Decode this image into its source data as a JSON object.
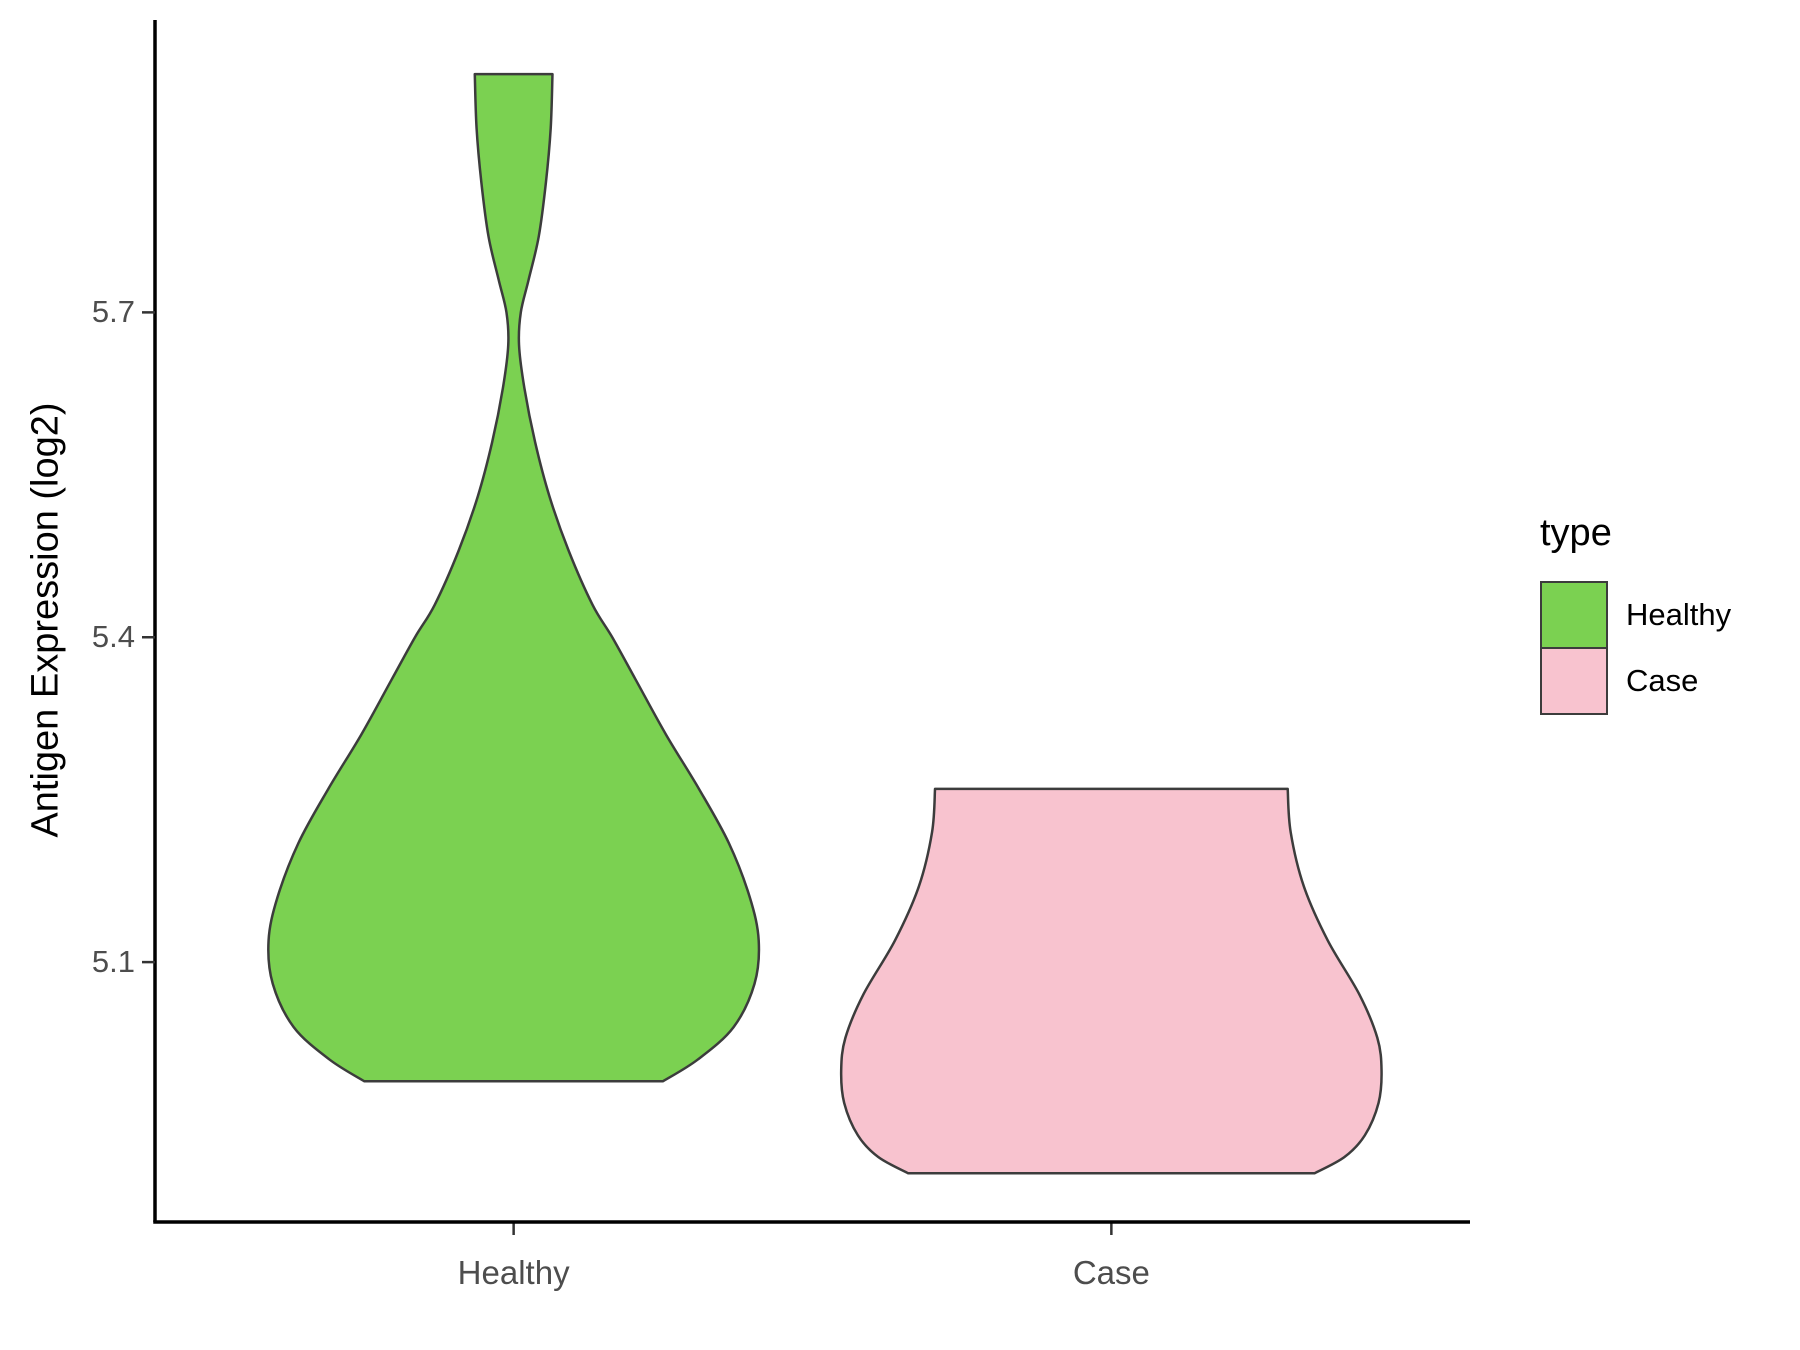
{
  "chart_data": {
    "type": "violin",
    "title": "",
    "xlabel": "",
    "ylabel": "Antigen Expression (log2)",
    "categories": [
      "Healthy",
      "Case"
    ],
    "yticks": [
      5.7,
      5.4,
      5.1
    ],
    "ylim": [
      4.86,
      5.97
    ],
    "grid": "off",
    "legend_position": "right",
    "colors": {
      "axis_line": "#000000",
      "axis_text": "#4d4d4d",
      "violin_stroke": "#3c3c3c",
      "healthy_fill": "#7bd151",
      "case_fill": "#f8c3cf"
    },
    "legend": {
      "title": "type",
      "entries": [
        {
          "label": "Healthy",
          "color": "#7bd151"
        },
        {
          "label": "Case",
          "color": "#f8c3cf"
        }
      ]
    },
    "series": [
      {
        "name": "Healthy",
        "color": "#7bd151",
        "value_range": [
          4.99,
          5.92
        ],
        "profile": [
          [
            5.92,
            0.065
          ],
          [
            5.87,
            0.062
          ],
          [
            5.82,
            0.054
          ],
          [
            5.77,
            0.042
          ],
          [
            5.73,
            0.025
          ],
          [
            5.7,
            0.012
          ],
          [
            5.67,
            0.009
          ],
          [
            5.63,
            0.018
          ],
          [
            5.58,
            0.036
          ],
          [
            5.53,
            0.06
          ],
          [
            5.48,
            0.092
          ],
          [
            5.43,
            0.132
          ],
          [
            5.4,
            0.165
          ],
          [
            5.36,
            0.205
          ],
          [
            5.31,
            0.255
          ],
          [
            5.26,
            0.31
          ],
          [
            5.21,
            0.36
          ],
          [
            5.16,
            0.395
          ],
          [
            5.12,
            0.41
          ],
          [
            5.08,
            0.403
          ],
          [
            5.04,
            0.368
          ],
          [
            5.01,
            0.308
          ],
          [
            4.99,
            0.25
          ]
        ]
      },
      {
        "name": "Case",
        "color": "#f8c3cf",
        "value_range": [
          4.905,
          5.26
        ],
        "profile": [
          [
            5.26,
            0.295
          ],
          [
            5.22,
            0.3
          ],
          [
            5.17,
            0.322
          ],
          [
            5.12,
            0.362
          ],
          [
            5.07,
            0.415
          ],
          [
            5.03,
            0.445
          ],
          [
            5.0,
            0.452
          ],
          [
            4.97,
            0.447
          ],
          [
            4.94,
            0.424
          ],
          [
            4.92,
            0.39
          ],
          [
            4.905,
            0.34
          ]
        ]
      }
    ]
  }
}
